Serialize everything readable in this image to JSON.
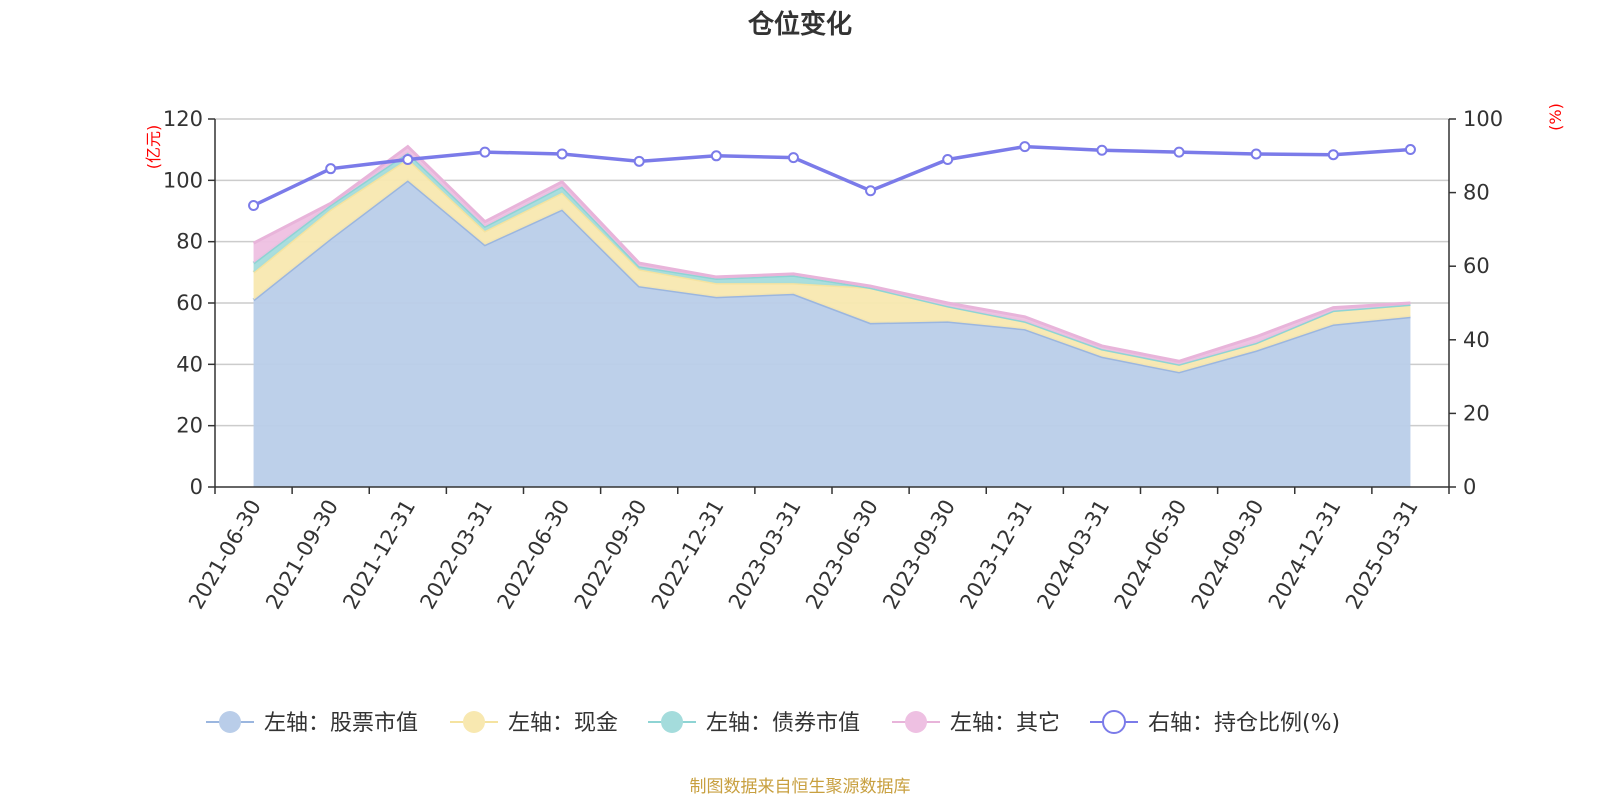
{
  "chart_data": {
    "type": "area",
    "title": "仓位变化",
    "left_unit": "(亿元)",
    "right_unit": "(%)",
    "categories": [
      "2021-06-30",
      "2021-09-30",
      "2021-12-31",
      "2022-03-31",
      "2022-06-30",
      "2022-09-30",
      "2022-12-31",
      "2023-03-31",
      "2023-06-30",
      "2023-09-30",
      "2023-12-31",
      "2024-03-31",
      "2024-06-30",
      "2024-09-30",
      "2024-12-31",
      "2025-03-31"
    ],
    "left_axis": {
      "min": 0,
      "max": 120,
      "ticks": [
        "0",
        "20",
        "40",
        "60",
        "80",
        "100",
        "120"
      ]
    },
    "right_axis": {
      "min": 0,
      "max": 100,
      "ticks": [
        "0",
        "20",
        "40",
        "60",
        "80",
        "100"
      ]
    },
    "stacked_series": [
      {
        "name": "左轴：股票市值",
        "color": "#9bb6df",
        "fill": "#b9cde9",
        "values": [
          61,
          81,
          100,
          79,
          90.5,
          65.5,
          62,
          63,
          53.5,
          54,
          51.5,
          42.5,
          37.5,
          44.5,
          53,
          55.5
        ]
      },
      {
        "name": "左轴：现金",
        "color": "#f5e3a0",
        "fill": "#f8e8b0",
        "values": [
          9,
          9.5,
          7,
          4.5,
          5.5,
          5.5,
          4.5,
          3.5,
          11.5,
          5,
          2.5,
          2.5,
          2.5,
          2.5,
          4.5,
          4
        ]
      },
      {
        "name": "左轴：债券市值",
        "color": "#8ed4d4",
        "fill": "#a4dcdc",
        "values": [
          3,
          1.5,
          2,
          1.5,
          2,
          1,
          1.5,
          2.5,
          0,
          0,
          0,
          0,
          0,
          0,
          0,
          0
        ]
      },
      {
        "name": "左轴：其它",
        "color": "#e8b4da",
        "fill": "#eec0e2",
        "values": [
          6.5,
          0.5,
          2,
          1.5,
          1.5,
          1,
          0.5,
          0.5,
          0.5,
          1,
          1.5,
          1,
          1,
          2,
          1,
          0.5
        ]
      }
    ],
    "line_series": {
      "name": "右轴：持仓比例(%)",
      "color": "#7b7be9",
      "values": [
        76.5,
        86.5,
        89,
        91,
        90.5,
        88.5,
        90,
        89.5,
        80.5,
        89,
        92.5,
        91.5,
        91,
        90.5,
        90.3,
        91.7
      ]
    },
    "source_note": "制图数据来自恒生聚源数据库",
    "grid": true,
    "legend_position": "bottom"
  }
}
